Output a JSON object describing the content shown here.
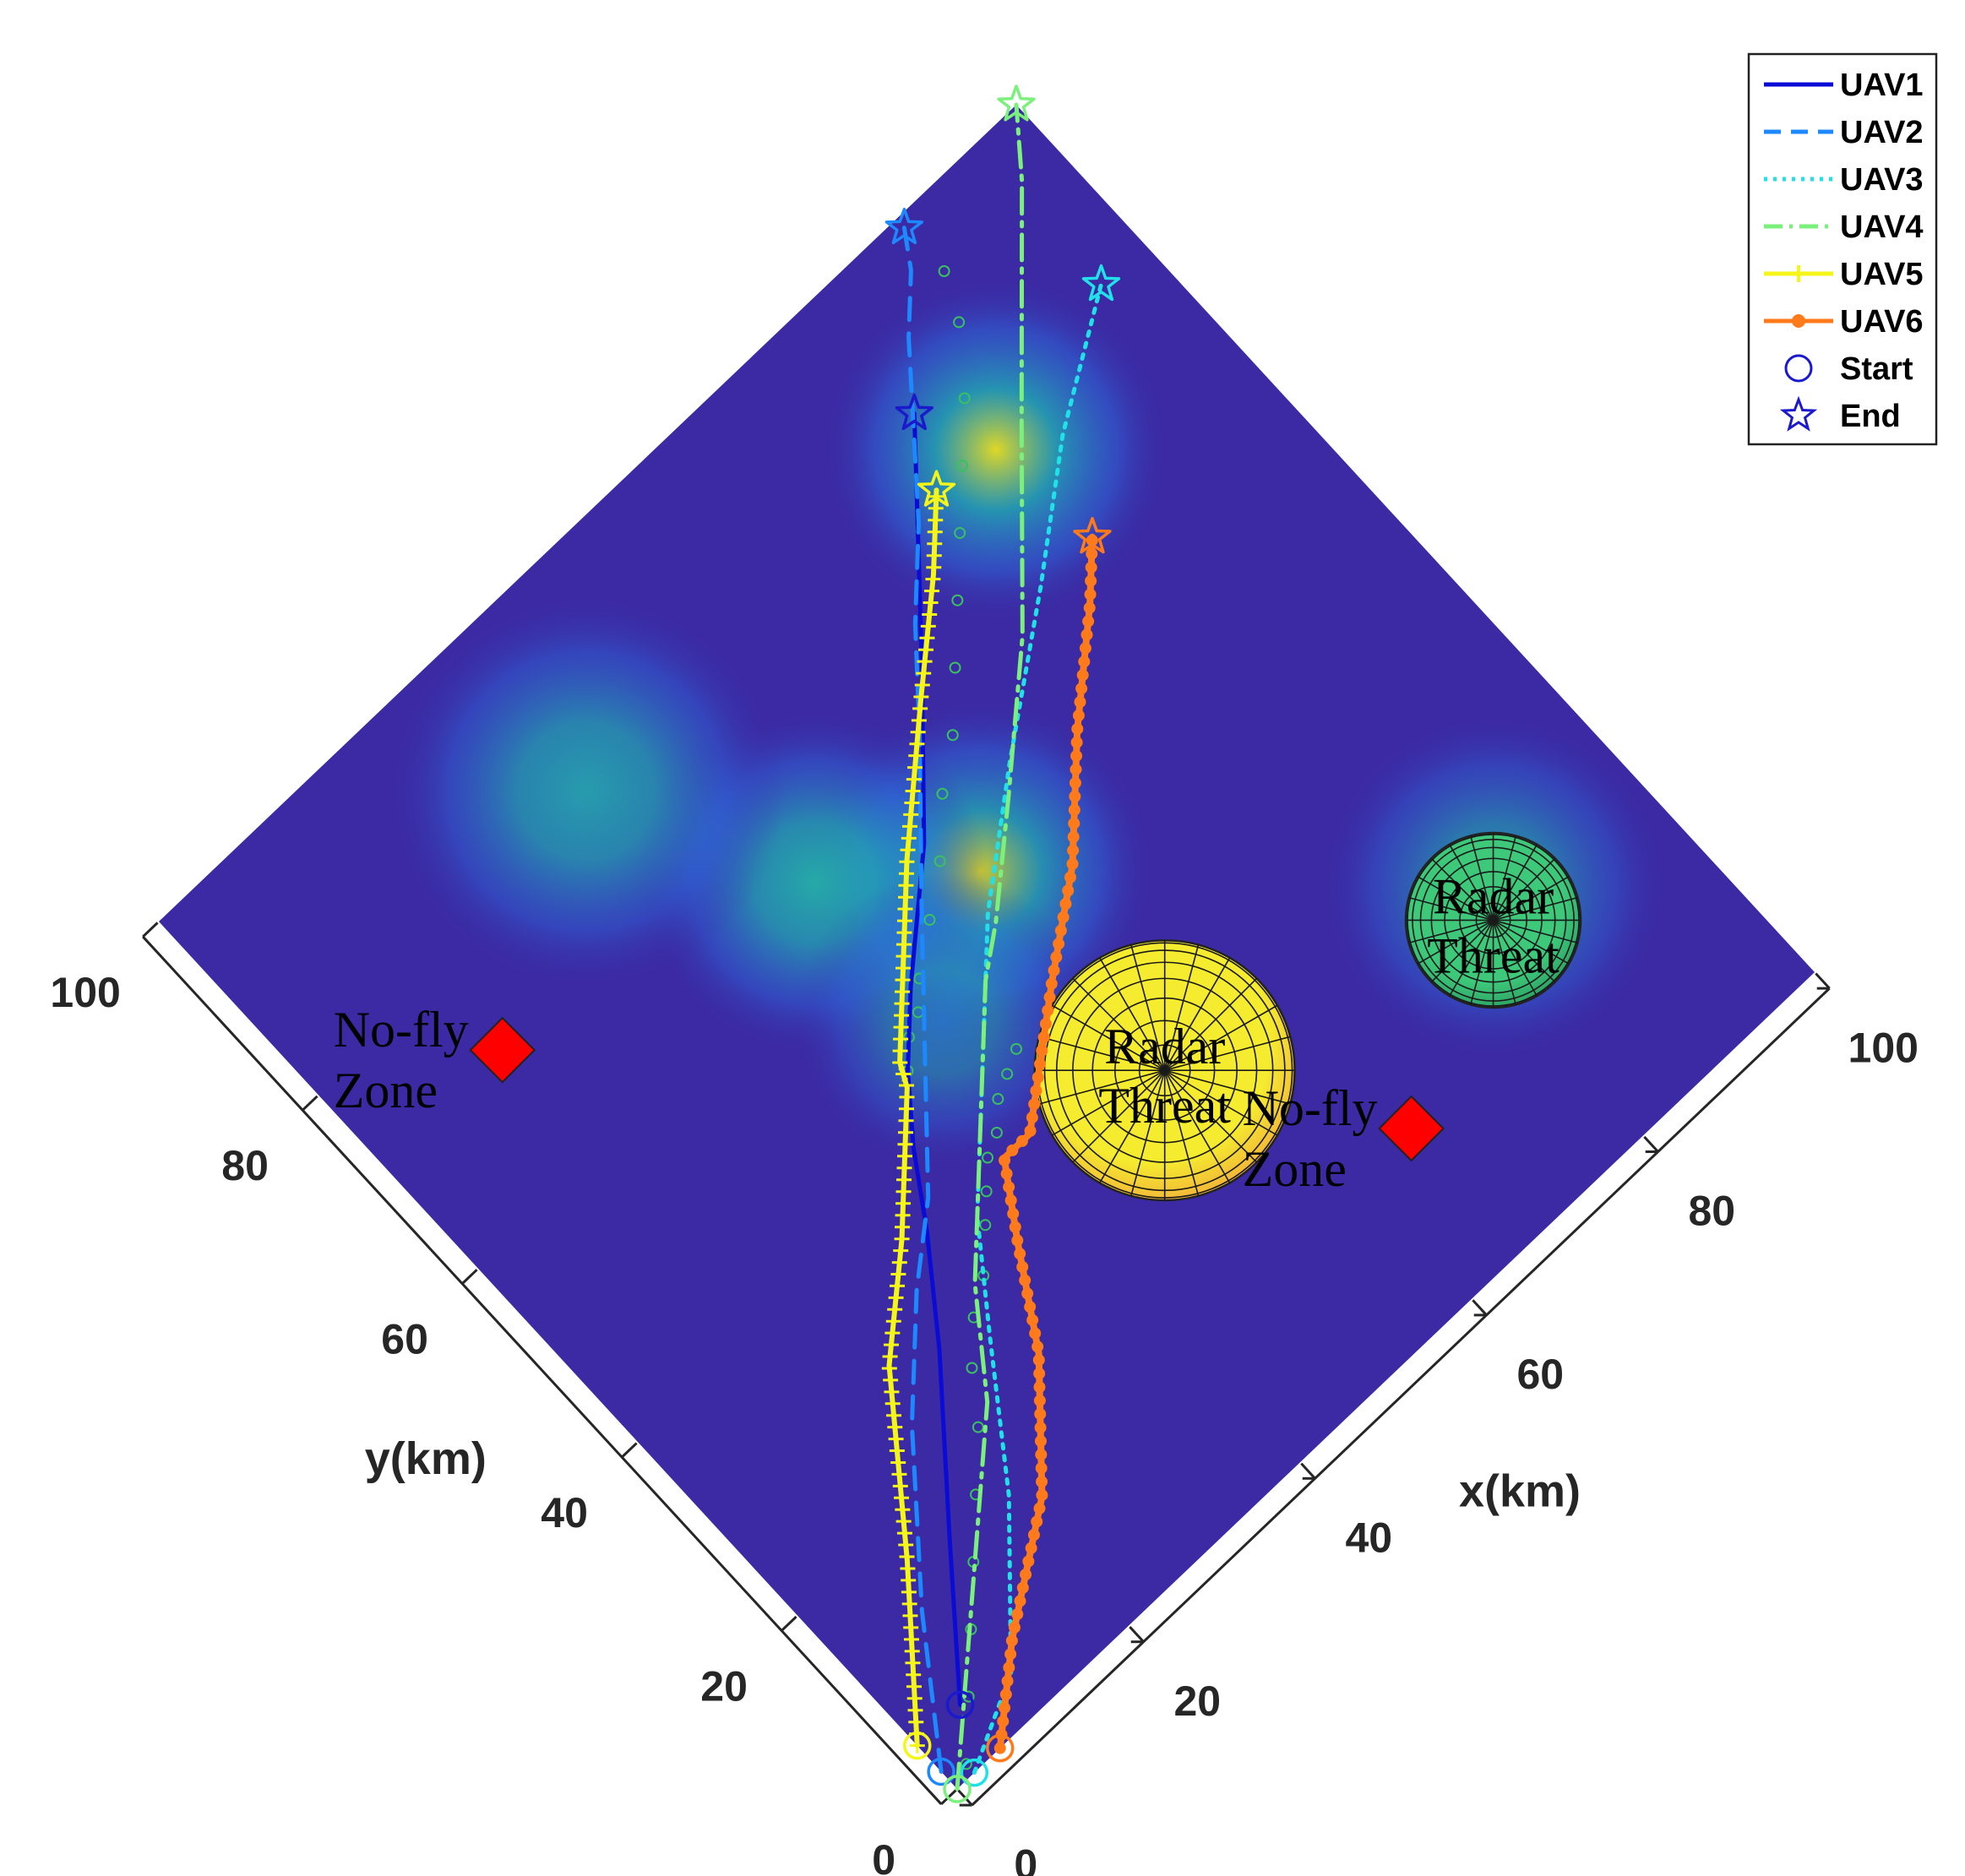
{
  "chart_data": {
    "type": "line",
    "view": "3d-top-rotated-45",
    "xlabel": "x(km)",
    "ylabel": "y(km)",
    "xlim": [
      0,
      100
    ],
    "ylim": [
      0,
      100
    ],
    "x_ticks": [
      0,
      20,
      40,
      60,
      80,
      100
    ],
    "y_ticks": [
      0,
      20,
      40,
      60,
      80,
      100
    ],
    "legend_position": "top-right",
    "legend": [
      {
        "label": "UAV1",
        "color": "#0b0bd6",
        "style": "solid"
      },
      {
        "label": "UAV2",
        "color": "#1e88ff",
        "style": "dashed"
      },
      {
        "label": "UAV3",
        "color": "#22e0e8",
        "style": "dotted"
      },
      {
        "label": "UAV4",
        "color": "#7cf07c",
        "style": "dashdot"
      },
      {
        "label": "UAV5",
        "color": "#f5f51a",
        "style": "plus-marker"
      },
      {
        "label": "UAV6",
        "color": "#ff7a1a",
        "style": "dot-marker"
      },
      {
        "label": "Start",
        "color": "#1a1acc",
        "style": "circle-marker"
      },
      {
        "label": "End",
        "color": "#1a1acc",
        "style": "star-marker"
      }
    ],
    "series": [
      {
        "label_ref": 0,
        "color": "#0b0bd6",
        "dash": "",
        "width": 5,
        "marker": "none",
        "points": [
          [
            5,
            5
          ],
          [
            14,
            16
          ],
          [
            24,
            28
          ],
          [
            30,
            36
          ],
          [
            34,
            42
          ],
          [
            38,
            47
          ],
          [
            40,
            49
          ],
          [
            43,
            52
          ],
          [
            52,
            60
          ],
          [
            62,
            71
          ],
          [
            76,
            87
          ]
        ]
      },
      {
        "label_ref": 1,
        "color": "#1e88ff",
        "dash": "26,16",
        "width": 5,
        "marker": "none",
        "points": [
          [
            0,
            2
          ],
          [
            8,
            13
          ],
          [
            18,
            25
          ],
          [
            26,
            33
          ],
          [
            32,
            38
          ],
          [
            40,
            47
          ],
          [
            48,
            56
          ],
          [
            58,
            67
          ],
          [
            64,
            74
          ],
          [
            70,
            80
          ],
          [
            80,
            92
          ],
          [
            84,
            96
          ],
          [
            86,
            99
          ]
        ]
      },
      {
        "label_ref": 2,
        "color": "#22e0e8",
        "dash": "5,9",
        "width": 5,
        "marker": "none",
        "points": [
          [
            2,
            0
          ],
          [
            10,
            4
          ],
          [
            20,
            15
          ],
          [
            28,
            26
          ],
          [
            34,
            34
          ],
          [
            42,
            42
          ],
          [
            52,
            52
          ],
          [
            62,
            60
          ],
          [
            74,
            69
          ],
          [
            84,
            77
          ],
          [
            95,
            84
          ]
        ]
      },
      {
        "label_ref": 3,
        "color": "#7cf07c",
        "dash": "30,10,5,10",
        "width": 5,
        "marker": "none",
        "points": [
          [
            0,
            0
          ],
          [
            12,
            11
          ],
          [
            24,
            22
          ],
          [
            30,
            30
          ],
          [
            34,
            34
          ],
          [
            40,
            40
          ],
          [
            44,
            44
          ],
          [
            48,
            48
          ],
          [
            52,
            51
          ],
          [
            60,
            58
          ],
          [
            70,
            67
          ],
          [
            82,
            80
          ],
          [
            96,
            95
          ],
          [
            100,
            100
          ]
        ]
      },
      {
        "label_ref": 4,
        "color": "#f5f51a",
        "dash": "",
        "width": 6,
        "marker": "plus",
        "points": [
          [
            0,
            5
          ],
          [
            10,
            17
          ],
          [
            20,
            30
          ],
          [
            28,
            37
          ],
          [
            34,
            43
          ],
          [
            37,
            46
          ],
          [
            38,
            48
          ],
          [
            41,
            51
          ],
          [
            50,
            60
          ],
          [
            60,
            69
          ],
          [
            68,
            76
          ],
          [
            73,
            81
          ]
        ]
      },
      {
        "label_ref": 5,
        "color": "#ff7a1a",
        "dash": "",
        "width": 8,
        "marker": "dot",
        "points": [
          [
            5,
            0
          ],
          [
            12,
            6
          ],
          [
            22,
            13
          ],
          [
            30,
            22
          ],
          [
            35,
            30
          ],
          [
            39,
            36
          ],
          [
            42,
            36
          ],
          [
            47,
            40
          ],
          [
            52,
            44
          ],
          [
            60,
            50
          ],
          [
            68,
            58
          ],
          [
            76,
            65
          ],
          [
            80,
            69
          ]
        ]
      }
    ],
    "green_path_circles": [
      [
        2,
        1
      ],
      [
        6,
        5
      ],
      [
        10,
        9
      ],
      [
        14,
        13
      ],
      [
        18,
        17
      ],
      [
        22,
        21
      ],
      [
        25,
        25
      ],
      [
        28,
        28
      ],
      [
        31,
        30
      ],
      [
        34,
        33
      ],
      [
        36,
        35
      ],
      [
        38,
        37
      ],
      [
        40,
        38
      ],
      [
        42,
        40
      ],
      [
        44,
        41
      ],
      [
        46,
        42
      ],
      [
        38,
        47
      ],
      [
        40,
        49
      ],
      [
        42,
        50
      ],
      [
        44,
        52
      ],
      [
        48,
        55
      ],
      [
        52,
        58
      ],
      [
        56,
        62
      ],
      [
        60,
        65
      ],
      [
        64,
        69
      ],
      [
        68,
        73
      ],
      [
        72,
        77
      ],
      [
        76,
        81
      ],
      [
        80,
        85
      ],
      [
        84,
        90
      ],
      [
        86,
        94
      ]
    ],
    "starts": [
      {
        "color": "#1a1acc",
        "xy": [
          5,
          5
        ]
      },
      {
        "color": "#1e88ff",
        "xy": [
          0,
          2
        ]
      },
      {
        "color": "#22e0e8",
        "xy": [
          2,
          0
        ]
      },
      {
        "color": "#7cf07c",
        "xy": [
          0,
          0
        ]
      },
      {
        "color": "#f5f51a",
        "xy": [
          0,
          5
        ]
      },
      {
        "color": "#ff7a1a",
        "xy": [
          5,
          0
        ]
      }
    ],
    "ends": [
      {
        "color": "#1a1acc",
        "xy": [
          76,
          87
        ]
      },
      {
        "color": "#1e88ff",
        "xy": [
          86,
          99
        ]
      },
      {
        "color": "#22e0e8",
        "xy": [
          95,
          84
        ]
      },
      {
        "color": "#7cf07c",
        "xy": [
          100,
          100
        ]
      },
      {
        "color": "#f5f51a",
        "xy": [
          73,
          81
        ]
      },
      {
        "color": "#ff7a1a",
        "xy": [
          80,
          69
        ]
      }
    ],
    "threat_peaks": [
      {
        "xy": [
          79,
          80
        ],
        "r": 7,
        "color": "#e8e020",
        "intensity": 0.95
      },
      {
        "xy": [
          54,
          55
        ],
        "r": 7,
        "color": "#d9d825",
        "intensity": 0.9
      },
      {
        "xy": [
          43,
          64
        ],
        "r": 7,
        "color": "#22c0a8",
        "intensity": 0.85
      },
      {
        "xy": [
          34,
          83
        ],
        "r": 8,
        "color": "#22b8b0",
        "intensity": 0.8
      },
      {
        "xy": [
          85,
          24
        ],
        "r": 7,
        "color": "#1fa8c8",
        "intensity": 0.7
      },
      {
        "xy": [
          43,
          48
        ],
        "r": 6,
        "color": "#1f9fd8",
        "intensity": 0.6
      }
    ],
    "radar_threats": [
      {
        "xy": [
          54,
          32
        ],
        "r": 11,
        "fill": "#f5eb2f",
        "fill_edge": "#f2a93a",
        "label_line1": "Radar",
        "label_line2": "Threat"
      },
      {
        "xy": [
          83,
          22
        ],
        "r": 7.4,
        "fill": "#3dc87a",
        "fill_edge": "#2a9a60",
        "label_line1": "Radar",
        "label_line2": "Threat"
      }
    ],
    "no_fly_zones": [
      {
        "xy": [
          14,
          72
        ],
        "label_line1": "No-fly",
        "label_line2": "Zone"
      },
      {
        "xy": [
          66,
          14
        ],
        "label_line1": "No-fly",
        "label_line2": "Zone"
      }
    ]
  }
}
